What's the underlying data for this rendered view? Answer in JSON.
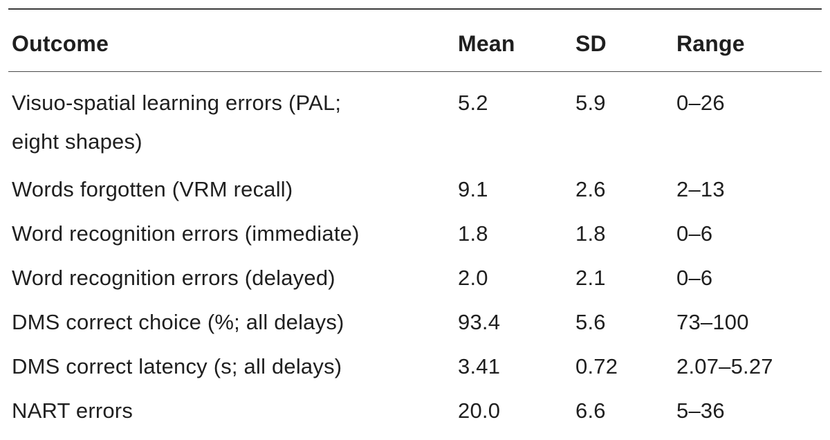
{
  "table": {
    "headers": {
      "outcome": "Outcome",
      "mean": "Mean",
      "sd": "SD",
      "range": "Range"
    },
    "rows": [
      {
        "outcome": "Visuo-spatial learning errors (PAL;",
        "outcome_cont": "eight shapes)",
        "mean": "5.2",
        "sd": "5.9",
        "range": "0–26"
      },
      {
        "outcome": "Words forgotten (VRM recall)",
        "mean": "9.1",
        "sd": "2.6",
        "range": "2–13"
      },
      {
        "outcome": "Word recognition errors (immediate)",
        "mean": "1.8",
        "sd": "1.8",
        "range": "0–6"
      },
      {
        "outcome": "Word recognition errors (delayed)",
        "mean": "2.0",
        "sd": "2.1",
        "range": "0–6"
      },
      {
        "outcome": "DMS correct choice (%; all delays)",
        "mean": "93.4",
        "sd": "5.6",
        "range": "73–100"
      },
      {
        "outcome": "DMS correct latency (s; all delays)",
        "mean": "3.41",
        "sd": "0.72",
        "range": "2.07–5.27"
      },
      {
        "outcome": "NART errors",
        "mean": "20.0",
        "sd": "6.6",
        "range": "5–36"
      }
    ]
  }
}
